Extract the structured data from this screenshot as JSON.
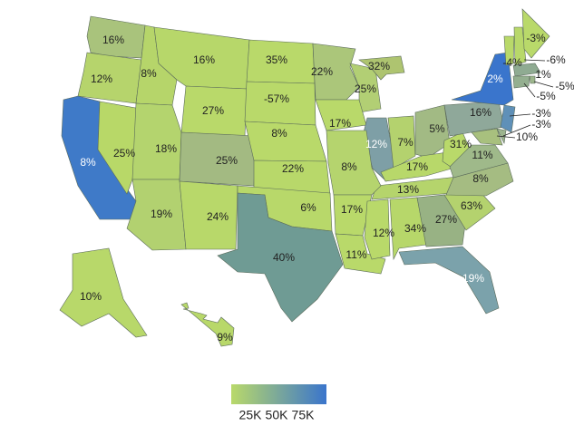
{
  "regions": [
    {
      "label": "16%",
      "color": "#a9c37c"
    },
    {
      "label": "12%",
      "color": "#b6d46c"
    },
    {
      "label": "8%",
      "color": "#3f7ac8"
    },
    {
      "label": "25%",
      "color": "#b8d868"
    },
    {
      "label": "8%",
      "color": "#b6d56a"
    },
    {
      "label": "16%",
      "color": "#b7d76a"
    },
    {
      "label": "27%",
      "color": "#b9d96a"
    },
    {
      "label": "18%",
      "color": "#b4d46e"
    },
    {
      "label": "19%",
      "color": "#b2d170"
    },
    {
      "label": "25%",
      "color": "#a3ba82"
    },
    {
      "label": "24%",
      "color": "#b8d86a"
    },
    {
      "label": "35%",
      "color": "#b9d96a"
    },
    {
      "label": "-57%",
      "color": "#b9d96a"
    },
    {
      "label": "8%",
      "color": "#b9d96a"
    },
    {
      "label": "22%",
      "color": "#b8d86a"
    },
    {
      "label": "6%",
      "color": "#b8d86a"
    },
    {
      "label": "40%",
      "color": "#6f9b94"
    },
    {
      "label": "22%",
      "color": "#abc67a"
    },
    {
      "label": "25%",
      "color": "#b2cf74"
    },
    {
      "label": "32%",
      "color": "#aec470"
    },
    {
      "label": "17%",
      "color": "#b9d96a"
    },
    {
      "label": "12%",
      "color": "#7e9fa6"
    },
    {
      "label": "7%",
      "color": "#b4d26e"
    },
    {
      "label": "5%",
      "color": "#a2ba84"
    },
    {
      "label": "17%",
      "color": "#b8d86a"
    },
    {
      "label": "31%",
      "color": "#b9d96a"
    },
    {
      "label": "13%",
      "color": "#b5d46c"
    },
    {
      "label": "8%",
      "color": "#b5d46e"
    },
    {
      "label": "17%",
      "color": "#b9d96a"
    },
    {
      "label": "11%",
      "color": "#b9d96a"
    },
    {
      "label": "12%",
      "color": "#b9d96a"
    },
    {
      "label": "34%",
      "color": "#b7d76a"
    },
    {
      "label": "27%",
      "color": "#98b284"
    },
    {
      "label": "19%",
      "color": "#7ba2ab"
    },
    {
      "label": "63%",
      "color": "#b4d26e"
    },
    {
      "label": "8%",
      "color": "#a5bc82"
    },
    {
      "label": "11%",
      "color": "#9fb98a"
    },
    {
      "label": "16%",
      "color": "#8fa89a"
    },
    {
      "label": "2%",
      "color": "#3a75cc"
    },
    {
      "label": "-3%",
      "color": "#5f90b8"
    },
    {
      "label": "-3%",
      "color": "#9cb48e"
    },
    {
      "label": "10%",
      "color": "#a8c07e"
    },
    {
      "label": "-4%",
      "color": "#b9d96a"
    },
    {
      "label": "-6%",
      "color": "#b8d86a"
    },
    {
      "label": "-3%",
      "color": "#b9d96a"
    },
    {
      "label": "1%",
      "color": "#8fab92"
    },
    {
      "label": "-5%",
      "color": "#9db68c"
    },
    {
      "label": "-5%",
      "color": "#94af90"
    },
    {
      "label": "10%",
      "color": "#b8d86a"
    },
    {
      "label": "9%",
      "color": "#b8d86a"
    }
  ],
  "legend": {
    "labels": [
      "25K",
      "50K",
      "75K"
    ],
    "colors": [
      "#b9d96a",
      "#3a75cc"
    ]
  }
}
